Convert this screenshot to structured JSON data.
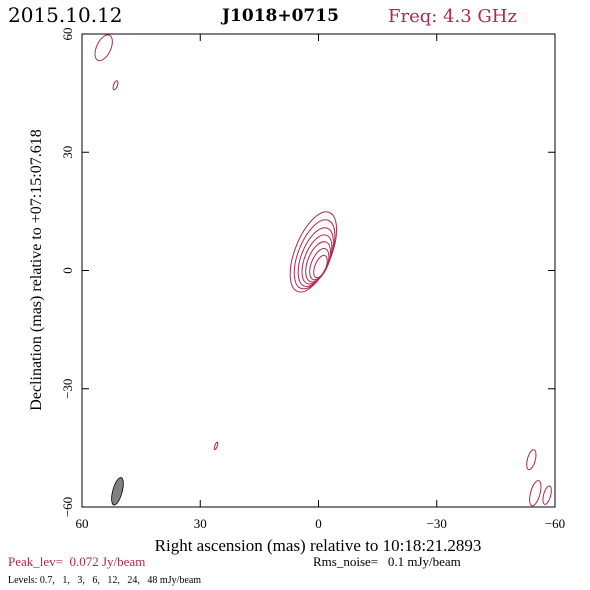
{
  "header": {
    "date": "2015.10.12",
    "source": "J1018+0715",
    "freq": "Freq: 4.3 GHz"
  },
  "chart_data": {
    "type": "contour",
    "xlabel": "Right ascension (mas) relative to 10:18:21.2893",
    "ylabel": "Declination (mas) relative to +07:15:07.618",
    "xlim": [
      60,
      -60
    ],
    "ylim": [
      -60,
      60
    ],
    "xticks": [
      60,
      30,
      0,
      -30,
      -60
    ],
    "yticks": [
      60,
      30,
      0,
      -30,
      -60
    ],
    "peak_text": "Peak_lev=  0.072 Jy/beam",
    "rms_text": "Rms_noise=   0.1 mJy/beam",
    "levels_text": "Levels: 0.7,   1,   3,   6,   12,   24,   48 mJy/beam",
    "levels_mJy": [
      0.7,
      1,
      3,
      6,
      12,
      24,
      48
    ],
    "colors": {
      "contour": "#b0284f",
      "beam": "#808080",
      "text": "#000000"
    },
    "core": {
      "x": -0.5,
      "y": 1,
      "angle_deg": 22,
      "peak_Jy": 0.072
    },
    "noise_contours": [
      {
        "x": 54.5,
        "y": 56.5,
        "rx": 1.8,
        "ry": 3.5,
        "angle": 25
      },
      {
        "x": 51.5,
        "y": 47,
        "rx": 0.5,
        "ry": 1.2,
        "angle": 20
      },
      {
        "x": 26,
        "y": -44.5,
        "rx": 0.3,
        "ry": 1.0,
        "angle": 20
      },
      {
        "x": -54,
        "y": -48,
        "rx": 1.0,
        "ry": 2.6,
        "angle": 15
      },
      {
        "x": -55,
        "y": -56.5,
        "rx": 1.2,
        "ry": 3.3,
        "angle": 15
      },
      {
        "x": -58,
        "y": -57,
        "rx": 0.9,
        "ry": 2.4,
        "angle": 15
      }
    ],
    "beam": {
      "x": 51,
      "y": -56,
      "major": 7.2,
      "minor": 2.4,
      "angle_deg": 15
    }
  }
}
